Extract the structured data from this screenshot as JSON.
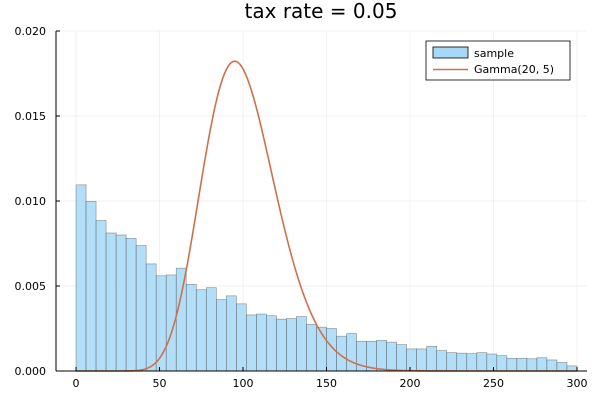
{
  "chart_data": {
    "type": "bar",
    "title": "tax rate = 0.05",
    "xlabel": "",
    "ylabel": "",
    "xlim": [
      -12,
      306
    ],
    "ylim": [
      0,
      0.02
    ],
    "x_ticks": [
      0,
      50,
      100,
      150,
      200,
      250,
      300
    ],
    "y_ticks": [
      0.0,
      0.005,
      0.01,
      0.015,
      0.02
    ],
    "y_tick_labels": [
      "0.000",
      "0.005",
      "0.010",
      "0.015",
      "0.020"
    ],
    "grid": true,
    "legend": "top-right",
    "series": [
      {
        "name": "sample",
        "type": "histogram",
        "color": "#a6d8f7",
        "bin_width": 6,
        "bin_start": 0,
        "values": [
          0.01095,
          0.00998,
          0.00885,
          0.00812,
          0.008,
          0.0078,
          0.00738,
          0.0063,
          0.0056,
          0.00565,
          0.00605,
          0.0051,
          0.00478,
          0.0049,
          0.0042,
          0.00442,
          0.00395,
          0.0033,
          0.00335,
          0.00325,
          0.00305,
          0.00308,
          0.0032,
          0.00275,
          0.00258,
          0.0025,
          0.00205,
          0.0022,
          0.00175,
          0.00175,
          0.0018,
          0.0017,
          0.00155,
          0.0013,
          0.0013,
          0.00145,
          0.0012,
          0.00108,
          0.00105,
          0.00102,
          0.00108,
          0.001,
          0.0009,
          0.00075,
          0.00075,
          0.00072,
          0.00078,
          0.00065,
          0.0005,
          0.0003
        ]
      },
      {
        "name": "Gamma(20, 5)",
        "type": "line",
        "color": "#d0704a",
        "distribution": {
          "shape": 20,
          "scale": 5
        }
      }
    ]
  }
}
